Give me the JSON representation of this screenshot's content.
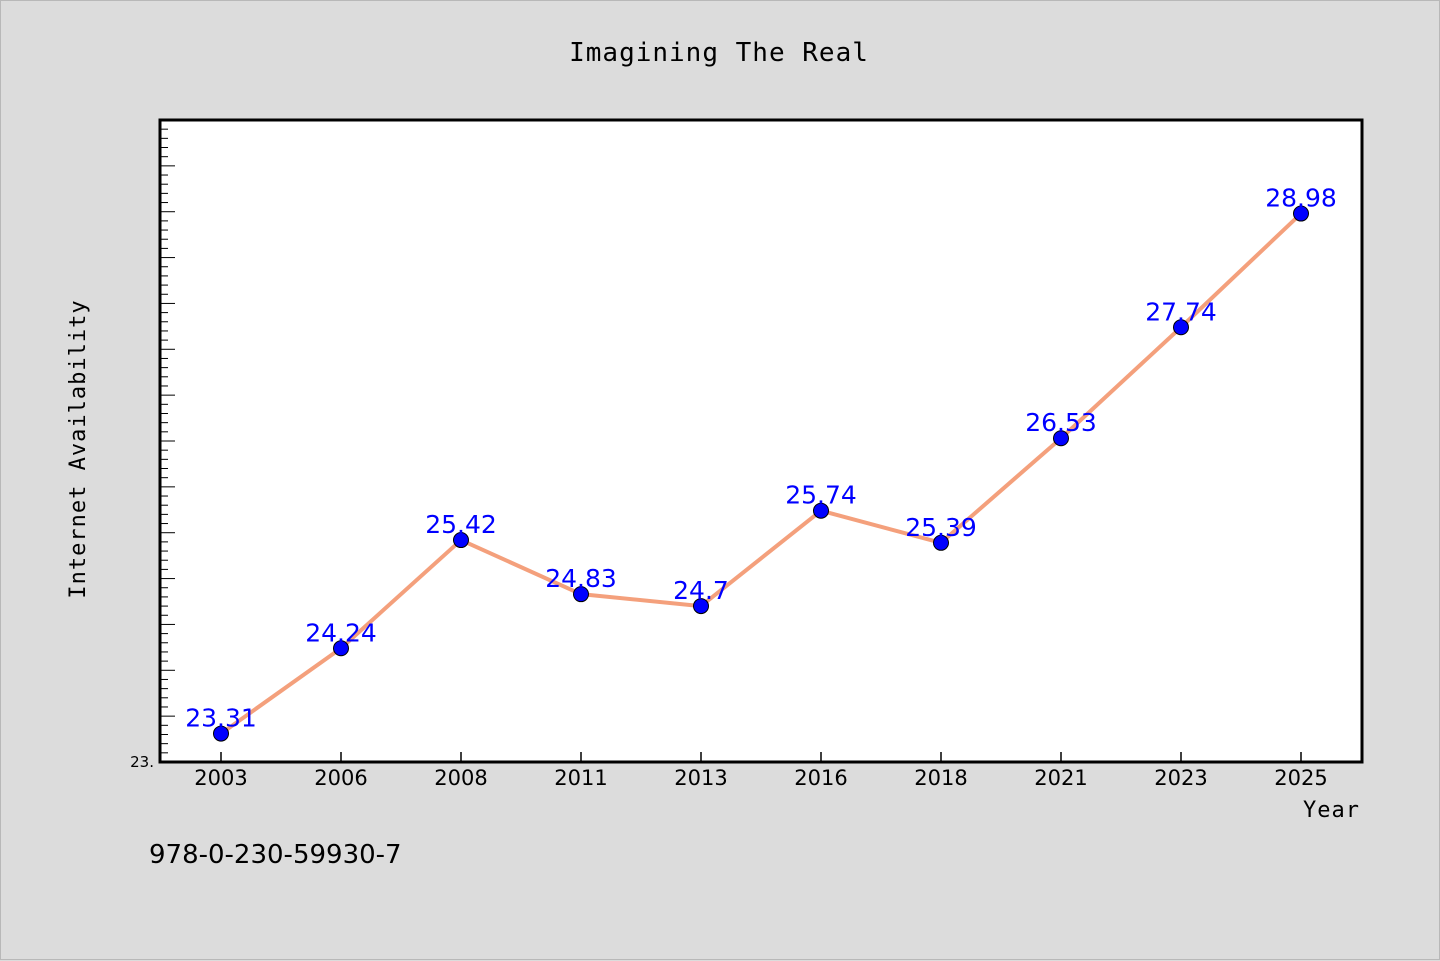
{
  "chart_data": {
    "type": "line",
    "title": "Imagining The Real",
    "xlabel": "Year",
    "ylabel": "Internet Availability",
    "categories": [
      "2003",
      "2006",
      "2008",
      "2011",
      "2013",
      "2016",
      "2018",
      "2021",
      "2023",
      "2025"
    ],
    "series": [
      {
        "values": [
          23.31,
          24.24,
          25.42,
          24.83,
          24.7,
          25.74,
          25.39,
          26.53,
          27.74,
          28.98
        ],
        "data_labels": [
          "23.31",
          "24.24",
          "25.42",
          "24.83",
          "24.7",
          "25.74",
          "25.39",
          "26.53",
          "27.74",
          "28.98"
        ]
      }
    ],
    "ytick_labels": [
      "23."
    ],
    "ylim": [
      23.0,
      30.0
    ],
    "grid": false,
    "legend": "none",
    "colors": {
      "line": "#f4a07c",
      "marker": "#0000ff",
      "data_label": "#0000ff",
      "plot_background": "#ffffff",
      "figure_background": "#dcdcdc"
    }
  },
  "footer": {
    "isbn": "978-0-230-59930-7"
  }
}
